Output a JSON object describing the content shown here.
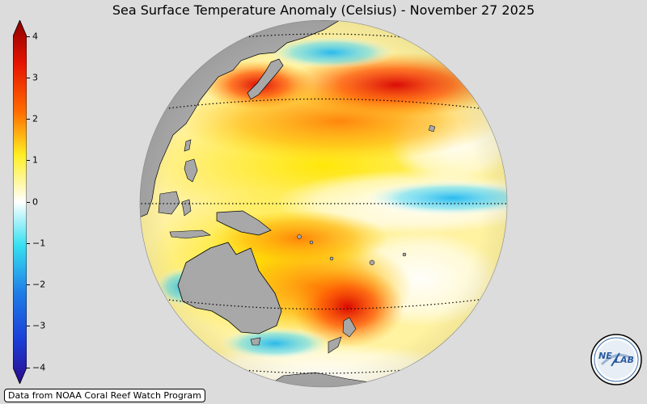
{
  "title": "Sea Surface Temperature Anomaly (Celsius) - November 27 2025",
  "colorbar": {
    "ticks": [
      "4",
      "3",
      "2",
      "1",
      "0",
      "−1",
      "−2",
      "−3",
      "−4"
    ],
    "min": -4,
    "max": 4,
    "colors": {
      "low_end": "#2a0a8c",
      "blue": "#1f7de6",
      "cyan": "#36e0f0",
      "white": "#ffffff",
      "yellow": "#ffee22",
      "orange": "#ff9a00",
      "red": "#e61400",
      "high_end": "#8c0000"
    }
  },
  "map": {
    "ocean_base": "#fff2a0",
    "land_color": "#a8a8a8",
    "outline_color": "#000000"
  },
  "credit": "Data from NOAA Coral Reef Watch Program",
  "logo": {
    "text_left": "NE",
    "text_right": "LAB"
  }
}
